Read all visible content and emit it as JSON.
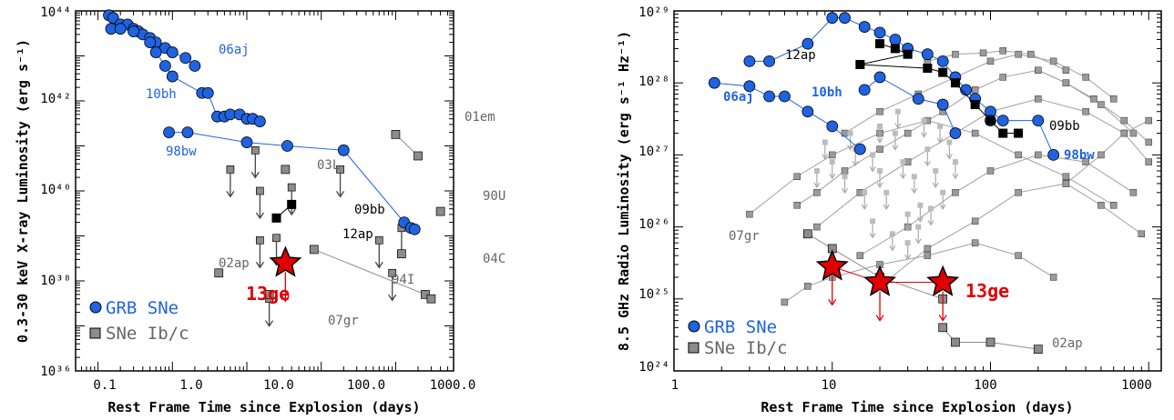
{
  "colors": {
    "grb": "#1f63e0",
    "ibc": "#8c8c8c",
    "ibc_light": "#bcbcbc",
    "black": "#000000",
    "red": "#e00000"
  },
  "chart_data": [
    {
      "type": "scatter",
      "xlabel": "Rest Frame Time since Explosion (days)",
      "ylabel": "0.3-30 keV X-ray Luminosity (erg s⁻¹)",
      "xscale": "log",
      "yscale": "log",
      "xlim": [
        0.05,
        6000
      ],
      "ylim": [
        1e+36,
        1e+44
      ],
      "x_ticks": [
        "0.1",
        "1.0",
        "10.0",
        "100.0",
        "1000.0"
      ],
      "y_ticks": [
        "10³⁶",
        "10³⁸",
        "10⁴⁰",
        "10⁴²",
        "10⁴⁴"
      ],
      "legend": {
        "position": "bottom-left",
        "entries": [
          "GRB SNe",
          "SNe Ib/c"
        ]
      },
      "series": [
        {
          "name": "06aj",
          "kind": "grb",
          "label": "06aj",
          "points": [
            [
              0.14,
              8e+43
            ],
            [
              0.16,
              7e+43
            ],
            [
              0.2,
              5e+43
            ],
            [
              0.25,
              5e+43
            ],
            [
              0.3,
              4e+43
            ],
            [
              0.35,
              3.5e+43
            ],
            [
              0.4,
              3e+43
            ],
            [
              0.5,
              2.5e+43
            ],
            [
              0.6,
              2e+43
            ],
            [
              0.8,
              1.5e+43
            ],
            [
              1.0,
              1.2e+43
            ],
            [
              1.5,
              9e+42
            ],
            [
              2.0,
              6e+42
            ]
          ]
        },
        {
          "name": "10bh",
          "kind": "grb",
          "label": "10bh",
          "points": [
            [
              0.15,
              4e+43
            ],
            [
              0.2,
              4e+43
            ],
            [
              0.3,
              3.5e+43
            ],
            [
              0.5,
              2e+43
            ],
            [
              0.6,
              1.2e+43
            ],
            [
              0.8,
              6e+42
            ],
            [
              1.0,
              3.5e+42
            ],
            [
              2.5,
              1.5e+42
            ],
            [
              3.0,
              1.5e+42
            ],
            [
              4.0,
              4.5e+41
            ],
            [
              5.0,
              4.5e+41
            ],
            [
              6.0,
              5e+41
            ],
            [
              8.0,
              5e+41
            ],
            [
              10.0,
              4e+41
            ],
            [
              12.0,
              4e+41
            ],
            [
              15.0,
              3.5e+41
            ]
          ]
        },
        {
          "name": "98bw",
          "kind": "grb",
          "label": "98bw",
          "points": [
            [
              0.9,
              2e+41
            ],
            [
              1.6,
              2e+41
            ],
            [
              10.0,
              1.2e+41
            ],
            [
              35.0,
              1e+41
            ],
            [
              200.0,
              8e+40
            ],
            [
              1300.0,
              2e+39
            ],
            [
              1600.0,
              1.5e+39
            ],
            [
              1800.0,
              1.4e+39
            ]
          ]
        },
        {
          "name": "01em",
          "kind": "ibc",
          "label": "01em",
          "points": [
            [
              1000,
              1.8e+41
            ],
            [
              2000,
              6e+40
            ]
          ]
        },
        {
          "name": "94I",
          "kind": "ibc",
          "label": "94I",
          "points": [
            [
              80,
              5e+38
            ],
            [
              2500,
              5e+37
            ],
            [
              3000,
              4e+37
            ]
          ]
        },
        {
          "name": "04C",
          "kind": "ibc",
          "label": "04C",
          "points": [
            [
              1200,
              4e+38
            ]
          ]
        },
        {
          "name": "02ap",
          "kind": "ibc",
          "label": "02ap",
          "points": [
            [
              4.2,
              1.5e+38
            ]
          ]
        },
        {
          "name": "03L",
          "kind": "ibc",
          "label": "03L",
          "points": [
            [
              33,
              3e+40
            ]
          ]
        },
        {
          "name": "90U",
          "kind": "ibc",
          "label": "90U",
          "points": [
            [
              4000,
              3.5e+39
            ]
          ]
        },
        {
          "name": "07gr",
          "kind": "ibc",
          "label": "07gr",
          "points": [
            [
              20,
              5e+37
            ]
          ]
        },
        {
          "name": "09bb",
          "kind": "black",
          "label": "09bb",
          "points": [
            [
              25,
              2.5e+39
            ],
            [
              40,
              5e+39
            ]
          ]
        },
        {
          "name": "13ge",
          "kind": "star",
          "label": "13ge",
          "points": [
            [
              33,
              2.5e+38
            ]
          ]
        }
      ],
      "upper_limits": [
        [
          6,
          3e+40
        ],
        [
          13,
          8e+40
        ],
        [
          15,
          1e+40
        ],
        [
          15,
          8e+38
        ],
        [
          25,
          9e+38
        ],
        [
          40,
          1.2e+40
        ],
        [
          180,
          3e+40
        ],
        [
          600,
          8e+38
        ],
        [
          900,
          1.5e+38
        ],
        [
          1200,
          1.5e+39
        ],
        [
          20,
          4e+37
        ]
      ],
      "labels": [
        "06aj",
        "10bh",
        "98bw",
        "01em",
        "03L",
        "09bb",
        "12ap",
        "90U",
        "02ap",
        "04C",
        "94I",
        "07gr",
        "13ge"
      ]
    },
    {
      "type": "scatter",
      "xlabel": "Rest Frame Time since Explosion (days)",
      "ylabel": "8.5 GHz Radio Luminosity (erg s⁻¹ Hz⁻¹)",
      "xscale": "log",
      "yscale": "log",
      "xlim": [
        1,
        1200
      ],
      "ylim": [
        1e+24,
        1e+29
      ],
      "x_ticks": [
        "1",
        "10",
        "100",
        "1000"
      ],
      "y_ticks": [
        "10²⁴",
        "10²⁵",
        "10²⁶",
        "10²⁷",
        "10²⁸",
        "10²⁹"
      ],
      "legend": {
        "position": "bottom-left",
        "entries": [
          "GRB SNe",
          "SNe Ib/c"
        ]
      },
      "series": [
        {
          "name": "12ap",
          "kind": "grb",
          "label": "12ap",
          "points": [
            [
              3,
              2e+28
            ],
            [
              4,
              2e+28
            ],
            [
              7,
              3.5e+28
            ],
            [
              10,
              8e+28
            ],
            [
              12,
              8e+28
            ],
            [
              16,
              6e+28
            ],
            [
              20,
              5e+28
            ],
            [
              25,
              4e+28
            ],
            [
              30,
              3e+28
            ],
            [
              40,
              2.5e+28
            ],
            [
              50,
              2e+28
            ],
            [
              60,
              1.2e+28
            ],
            [
              70,
              8e+27
            ],
            [
              80,
              6e+27
            ],
            [
              100,
              4e+27
            ],
            [
              120,
              3e+27
            ]
          ]
        },
        {
          "name": "06aj",
          "kind": "grb",
          "label": "06aj",
          "points": [
            [
              1.8,
              1e+28
            ],
            [
              3,
              9e+27
            ],
            [
              4,
              6.5e+27
            ],
            [
              5,
              6.5e+27
            ],
            [
              7,
              4e+27
            ],
            [
              10,
              2.5e+27
            ],
            [
              15,
              1.2e+27
            ]
          ]
        },
        {
          "name": "10bh",
          "kind": "grb",
          "label": "10bh",
          "points": [
            [
              16,
              8e+27
            ],
            [
              20,
              1.2e+28
            ],
            [
              35,
              6e+27
            ],
            [
              50,
              5e+27
            ],
            [
              60,
              2e+27
            ]
          ]
        },
        {
          "name": "98bw",
          "kind": "grb",
          "label": "98bw",
          "points": [
            [
              100,
              3e+27
            ],
            [
              200,
              3e+27
            ],
            [
              250,
              1e+27
            ]
          ]
        },
        {
          "name": "09bb",
          "kind": "black",
          "label": "09bb",
          "points": [
            [
              20,
              3.5e+28
            ],
            [
              25,
              3e+28
            ],
            [
              30,
              2.5e+28
            ],
            [
              15,
              1.8e+28
            ],
            [
              40,
              1.6e+28
            ],
            [
              50,
              1.4e+28
            ],
            [
              60,
              1e+28
            ],
            [
              80,
              5e+27
            ],
            [
              100,
              3e+27
            ],
            [
              120,
              2e+27
            ],
            [
              150,
              2e+27
            ]
          ]
        },
        {
          "name": "02ap",
          "kind": "ibc",
          "label": "02ap",
          "points": [
            [
              50,
              4e+24
            ],
            [
              60,
              2.5e+24
            ],
            [
              100,
              2.5e+24
            ],
            [
              200,
              2e+24
            ]
          ]
        },
        {
          "name": "07gr",
          "kind": "ibc",
          "label": "07gr",
          "points": [
            [
              7,
              8e+25
            ],
            [
              10,
              5e+25
            ],
            [
              20,
              2e+25
            ],
            [
              50,
              1e+25
            ]
          ]
        },
        {
          "name": "13ge",
          "kind": "star",
          "label": "13ge",
          "points": [
            [
              10,
              2.8e+25
            ],
            [
              20,
              1.7e+25
            ],
            [
              50,
              1.7e+25
            ]
          ]
        }
      ],
      "labels": [
        "12ap",
        "06aj",
        "10bh",
        "09bb",
        "98bw",
        "07gr",
        "13ge",
        "02ap"
      ]
    }
  ]
}
